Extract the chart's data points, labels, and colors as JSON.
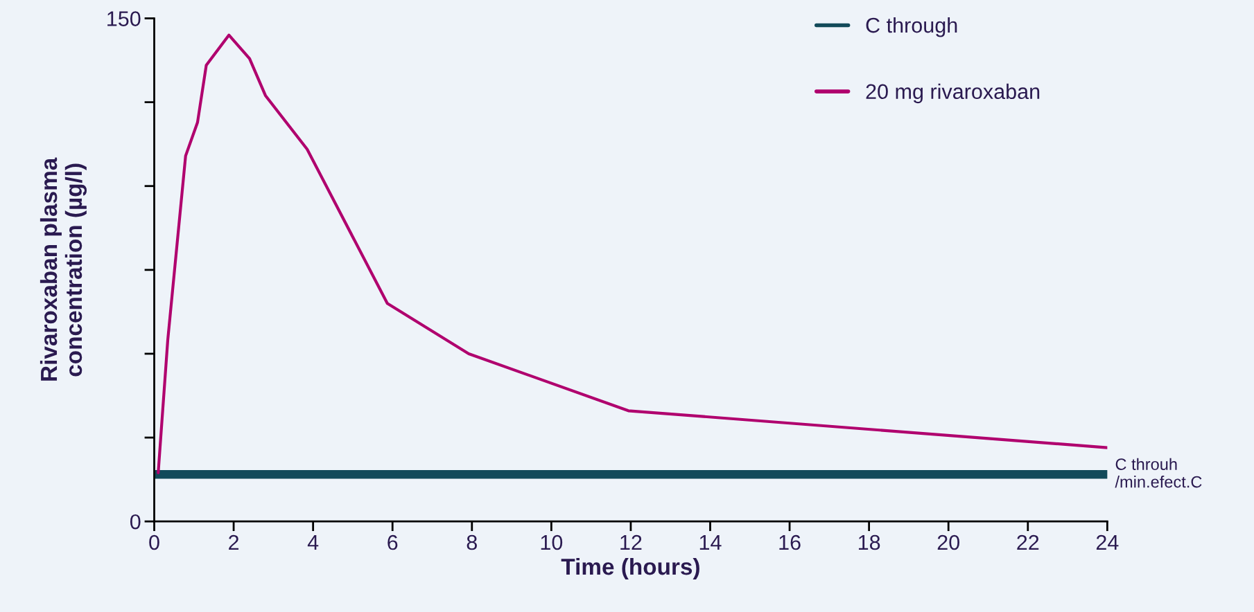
{
  "chart_data": {
    "type": "line",
    "xlabel": "Time (hours)",
    "ylabel": "Rivaroxaban plasma\nconcentration (µg/l)",
    "series": [
      {
        "name": "C through",
        "color": "#124a5a",
        "x": [
          0,
          24
        ],
        "values": [
          14,
          14
        ]
      },
      {
        "name": "20 mg rivaroxaban",
        "color": "#b0006e",
        "x": [
          0.1,
          0.34,
          0.79,
          1.09,
          1.31,
          1.88,
          2.4,
          2.8,
          3.85,
          5.87,
          7.92,
          11.94,
          24
        ],
        "values": [
          14.5,
          54,
          109,
          119,
          136,
          145,
          138,
          127,
          111,
          65,
          50,
          33,
          22
        ]
      }
    ],
    "annotations": [
      {
        "text": "C throuh\n/min.efect.C",
        "x": 24,
        "y": 14
      }
    ],
    "xlim": [
      0,
      24
    ],
    "xticks": [
      0,
      2,
      4,
      6,
      8,
      10,
      12,
      14,
      16,
      18,
      20,
      22,
      24
    ],
    "ylim": [
      0,
      150
    ],
    "yticks": [
      0,
      {
        "value": 25,
        "label": null
      },
      {
        "value": 50,
        "label": null
      },
      {
        "value": 75,
        "label": null
      },
      {
        "value": 100,
        "label": null
      },
      {
        "value": 125,
        "label": null
      },
      150
    ],
    "grid": false,
    "legend": "top right",
    "marker": "none",
    "line_style": "solid"
  }
}
